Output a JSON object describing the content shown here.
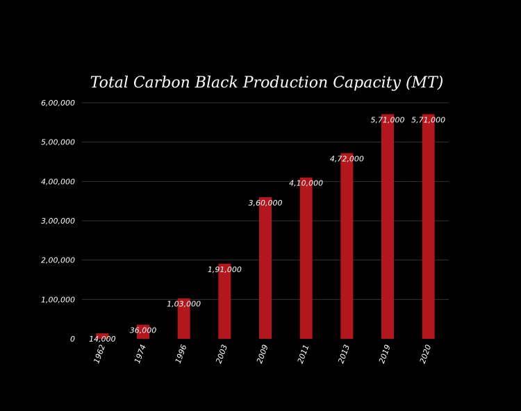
{
  "chart_data": {
    "type": "bar",
    "title": "Total Carbon Black Production Capacity (MT)",
    "xlabel": "",
    "ylabel": "",
    "categories": [
      "1962",
      "1974",
      "1996",
      "2003",
      "2009",
      "2011",
      "2013",
      "2019",
      "2020"
    ],
    "values": [
      14000,
      36000,
      103000,
      191000,
      360000,
      410000,
      472000,
      571000,
      571000
    ],
    "data_labels": [
      "14,000",
      "36,000",
      "1,03,000",
      "1,91,000",
      "3,60,000",
      "4,10,000",
      "4,72,000",
      "5,71,000",
      "5,71,000"
    ],
    "ylim": [
      0,
      600000
    ],
    "yticks": [
      0,
      100000,
      200000,
      300000,
      400000,
      500000,
      600000
    ],
    "ytick_labels": [
      "0",
      "1,00,000",
      "2,00,000",
      "3,00,000",
      "4,00,000",
      "5,00,000",
      "6,00,000"
    ],
    "grid": true,
    "legend": "none",
    "colors": {
      "bar": "#b3161b",
      "background": "#000000",
      "text": "#ffffff",
      "grid": "#333333"
    }
  }
}
